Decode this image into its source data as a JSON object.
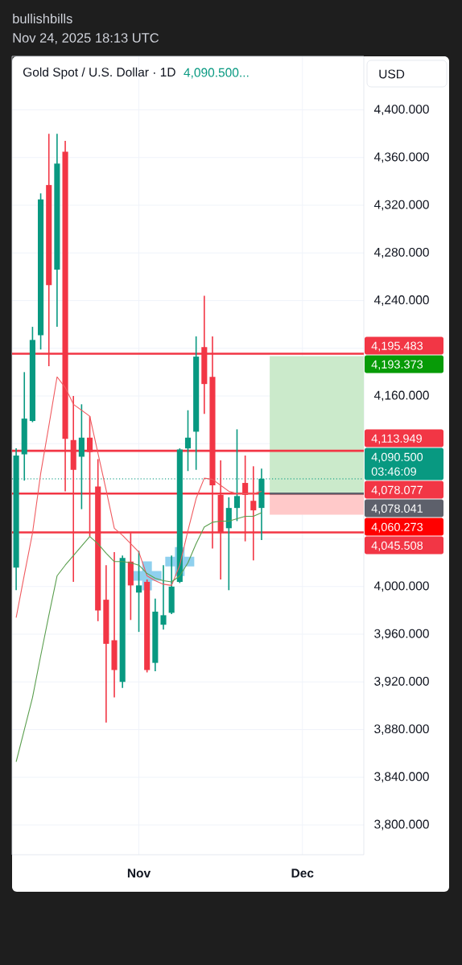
{
  "chart_data": {
    "type": "candlestick",
    "title": "Gold Spot / U.S. Dollar · 1D",
    "subtitle": "4,090.500...",
    "ylabel": "USD",
    "annotations": [
      "bullishbills",
      "Nov 24, 2025 18:13 UTC"
    ],
    "categories": [
      null,
      null,
      null,
      null,
      null,
      null,
      null,
      null,
      null,
      null,
      null,
      null,
      null,
      null,
      null,
      "Nov",
      null,
      null,
      null,
      null,
      null,
      null,
      null,
      null,
      null,
      null,
      null,
      null,
      null,
      null,
      null,
      null,
      null,
      null,
      null,
      "Dec",
      null,
      null,
      null,
      null,
      null,
      null,
      null
    ],
    "ohlc": [
      [
        4016,
        4116,
        3997,
        4110
      ],
      [
        4111,
        4180,
        4089,
        4141
      ],
      [
        4139,
        4218,
        4138,
        4207
      ],
      [
        4211,
        4330,
        4199,
        4325
      ],
      [
        4337,
        4380,
        4185,
        4253
      ],
      [
        4266,
        4380,
        4218,
        4355
      ],
      [
        4365,
        4374,
        4080,
        4124
      ],
      [
        4123,
        4160,
        4004,
        4098
      ],
      [
        4109,
        4153,
        4065,
        4125
      ],
      [
        4125,
        4143,
        4042,
        4113
      ],
      [
        4084,
        4107,
        3971,
        3980
      ],
      [
        3989,
        4018,
        3886,
        3952
      ],
      [
        3955,
        4029,
        3907,
        3930
      ],
      [
        3920,
        4026,
        3915,
        4024
      ],
      [
        4021,
        4045,
        3972,
        4001
      ],
      [
        3995,
        4030,
        3962,
        4001
      ],
      [
        4004,
        4006,
        3928,
        3930
      ],
      [
        3936,
        3990,
        3929,
        3979
      ],
      [
        3968,
        4018,
        3964,
        3976
      ],
      [
        3978,
        4026,
        3977,
        4000
      ],
      [
        4004,
        4116,
        4003,
        4115
      ],
      [
        4116,
        4148,
        4097,
        4125
      ],
      [
        4130,
        4210,
        4098,
        4193
      ],
      [
        4201,
        4244,
        4145,
        4170
      ],
      [
        4176,
        4210,
        4032,
        4085
      ],
      [
        4077,
        4106,
        4006,
        4045
      ],
      [
        4049,
        4075,
        3997,
        4066
      ],
      [
        4066,
        4132,
        4055,
        4076
      ],
      [
        4087,
        4110,
        4038,
        4077
      ],
      [
        4072,
        4101,
        4022,
        4064
      ],
      [
        4066,
        4099,
        4039,
        4090.5
      ],
      null,
      null,
      null,
      null,
      null,
      null,
      null,
      null,
      null,
      null,
      null,
      null
    ],
    "colors": [
      "#089981",
      "#089981",
      "#089981",
      "#089981",
      "#f23645",
      "#089981",
      "#f23645",
      "#f23645",
      "#089981",
      "#f23645",
      "#f23645",
      "#f23645",
      "#f23645",
      "#089981",
      "#f23645",
      "#089981",
      "#f23645",
      "#089981",
      "#089981",
      "#089981",
      "#089981",
      "#089981",
      "#089981",
      "#f23645",
      "#f23645",
      "#f23645",
      "#089981",
      "#089981",
      "#f23645",
      "#f23645",
      "#089981",
      null,
      null,
      null,
      null,
      null,
      null,
      null,
      null,
      null,
      null,
      null,
      null
    ],
    "series": [
      {
        "type": "line",
        "color": "#f05a5f",
        "values": [
          3974,
          4010,
          4045,
          4095,
          4135,
          4176,
          4167,
          4153,
          4148,
          4143,
          4112,
          4081,
          4049,
          4043,
          4036,
          4029,
          4009,
          4005,
          4002,
          4001,
          4018,
          4047,
          4074,
          4091,
          4090,
          4085,
          4080,
          4078,
          4078,
          4078,
          4080,
          null,
          null,
          null,
          null,
          null,
          null,
          null,
          null,
          null,
          null,
          null,
          null
        ]
      },
      {
        "type": "line",
        "color": "#5a9e4e",
        "values": [
          3853,
          3880,
          3907,
          3942,
          3976,
          4009,
          4018,
          4026,
          4034,
          4042,
          4036,
          4028,
          4021,
          4021,
          4020,
          4018,
          4011,
          4007,
          4005,
          4004,
          4009,
          4020,
          4036,
          4050,
          4054,
          4055,
          4055,
          4057,
          4059,
          4059,
          4062,
          null,
          null,
          null,
          null,
          null,
          null,
          null,
          null,
          null,
          null,
          null,
          null
        ]
      },
      {
        "type": "scatter",
        "color": "#8fd0ee",
        "marker": "cross",
        "values": [
          null,
          null,
          null,
          null,
          null,
          null,
          null,
          null,
          null,
          null,
          null,
          null,
          null,
          null,
          null,
          null,
          4009,
          null,
          null,
          null,
          4021,
          null,
          null,
          null,
          null,
          null,
          null,
          null,
          null,
          null,
          null,
          null,
          null,
          null,
          null,
          null,
          null,
          null,
          null,
          null,
          null,
          null,
          null
        ]
      }
    ],
    "ylim": [
      3775,
      4445
    ],
    "yticks": [
      {
        "value": 3800,
        "label": "3,800.000"
      },
      {
        "value": 3840,
        "label": "3,840.000"
      },
      {
        "value": 3880,
        "label": "3,880.000"
      },
      {
        "value": 3920,
        "label": "3,920.000"
      },
      {
        "value": 3960,
        "label": "3,960.000"
      },
      {
        "value": 4000,
        "label": "4,000.000"
      },
      {
        "value": 4040,
        "label": null
      },
      {
        "value": 4080,
        "label": null
      },
      {
        "value": 4120,
        "label": null
      },
      {
        "value": 4160,
        "label": "4,160.000"
      },
      {
        "value": 4200,
        "label": null
      },
      {
        "value": 4240,
        "label": "4,240.000"
      },
      {
        "value": 4280,
        "label": "4,280.000"
      },
      {
        "value": 4320,
        "label": "4,320.000"
      },
      {
        "value": 4360,
        "label": "4,360.000"
      },
      {
        "value": 4400,
        "label": "4,400.000"
      }
    ],
    "grid": true,
    "ref_lines": [
      {
        "axis": "y",
        "value": 4195.483,
        "label": "4,195.483",
        "color": "#f23645"
      },
      {
        "axis": "y",
        "value": 4113.949,
        "label": "4,113.949",
        "color": "#f23645"
      },
      {
        "axis": "y",
        "value": 4090.5,
        "label": "4,090.500 03:46:09",
        "color": "#089981",
        "line_style": "dotted"
      },
      {
        "axis": "y",
        "value": 4078.077,
        "label": "4,078.077",
        "color": "#f23645"
      },
      {
        "axis": "y",
        "value": 4078.041,
        "label": "4,078.041",
        "color": "#5d606b"
      },
      {
        "axis": "y",
        "value": 4045.508,
        "label": "4,045.508",
        "color": "#f23645"
      }
    ],
    "bands": [
      {
        "axis": "y",
        "from": 4078.041,
        "to": 4193.373,
        "label": "4,193.373",
        "color": "#cbeacb"
      },
      {
        "axis": "y",
        "from": 4078.041,
        "to": 4060.273,
        "label": "4,060.273",
        "color": "#ffc9c9"
      }
    ]
  }
}
